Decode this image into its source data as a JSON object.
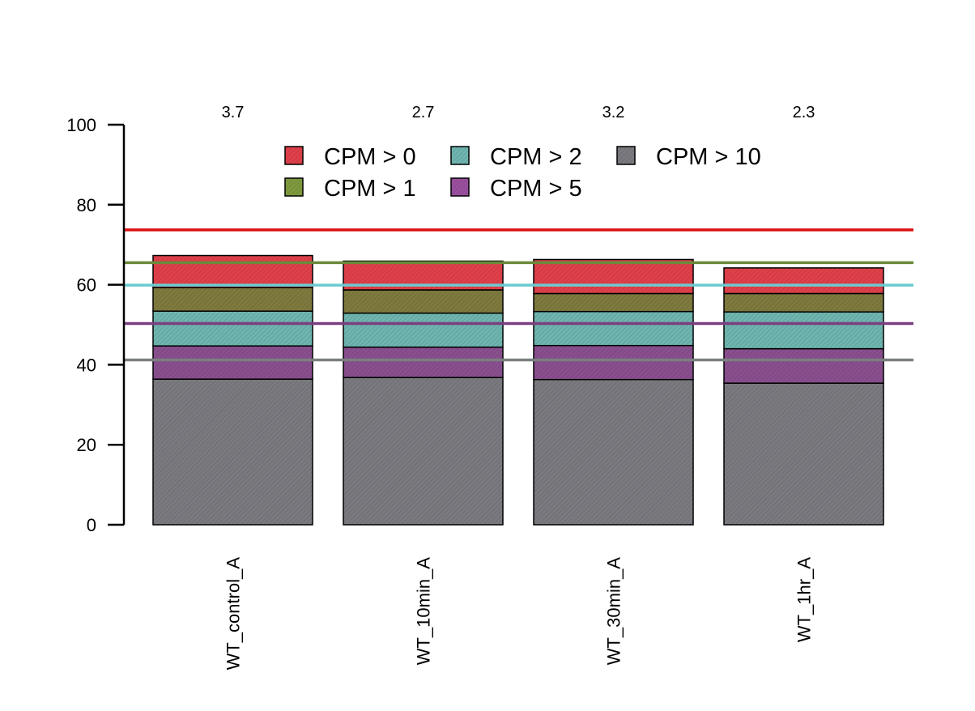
{
  "chart_data": {
    "type": "bar",
    "stacked": true,
    "categories": [
      "WT_control_A",
      "WT_10min_A",
      "WT_30min_A",
      "WT_1hr_A"
    ],
    "top_labels": [
      "3.7",
      "2.7",
      "3.2",
      "2.3"
    ],
    "ylim": [
      0,
      100
    ],
    "yticks": [
      "0",
      "20",
      "40",
      "60",
      "80",
      "100"
    ],
    "series": [
      {
        "name": "CPM > 10",
        "color": "#7a7a80",
        "values": [
          36.4,
          36.8,
          36.3,
          35.4
        ]
      },
      {
        "name": "CPM > 5",
        "color": "#8a4f8f",
        "values": [
          8.3,
          7.6,
          8.5,
          8.6
        ]
      },
      {
        "name": "CPM > 2",
        "color": "#6fb5b0",
        "values": [
          8.7,
          8.5,
          8.5,
          9.2
        ]
      },
      {
        "name": "CPM > 1",
        "color": "#7f7a3e",
        "values": [
          5.9,
          5.8,
          4.5,
          4.6
        ]
      },
      {
        "name": "CPM > 0",
        "color": "#e0404a",
        "values": [
          8.0,
          7.2,
          8.5,
          6.4
        ]
      }
    ],
    "reference_lines": [
      {
        "series": "CPM > 0",
        "value": 73.7,
        "color": "#dd1111"
      },
      {
        "series": "CPM > 1",
        "value": 65.5,
        "color": "#6b8a3a"
      },
      {
        "series": "CPM > 2",
        "value": 59.9,
        "color": "#6ccbd0"
      },
      {
        "series": "CPM > 5",
        "value": 50.3,
        "color": "#7a3f80"
      },
      {
        "series": "CPM > 10",
        "value": 41.2,
        "color": "#7a7f80"
      }
    ],
    "legend": {
      "placement": "top-center",
      "entries": [
        {
          "label": "CPM > 0",
          "color": "#e0404a"
        },
        {
          "label": "CPM > 2",
          "color": "#6fb5b0"
        },
        {
          "label": "CPM > 10",
          "color": "#7a7a80"
        },
        {
          "label": "CPM > 1",
          "color": "#7f9a3e"
        },
        {
          "label": "CPM > 5",
          "color": "#9a4f9f"
        }
      ]
    },
    "title": "",
    "xlabel": "",
    "ylabel": "",
    "grid": false
  }
}
